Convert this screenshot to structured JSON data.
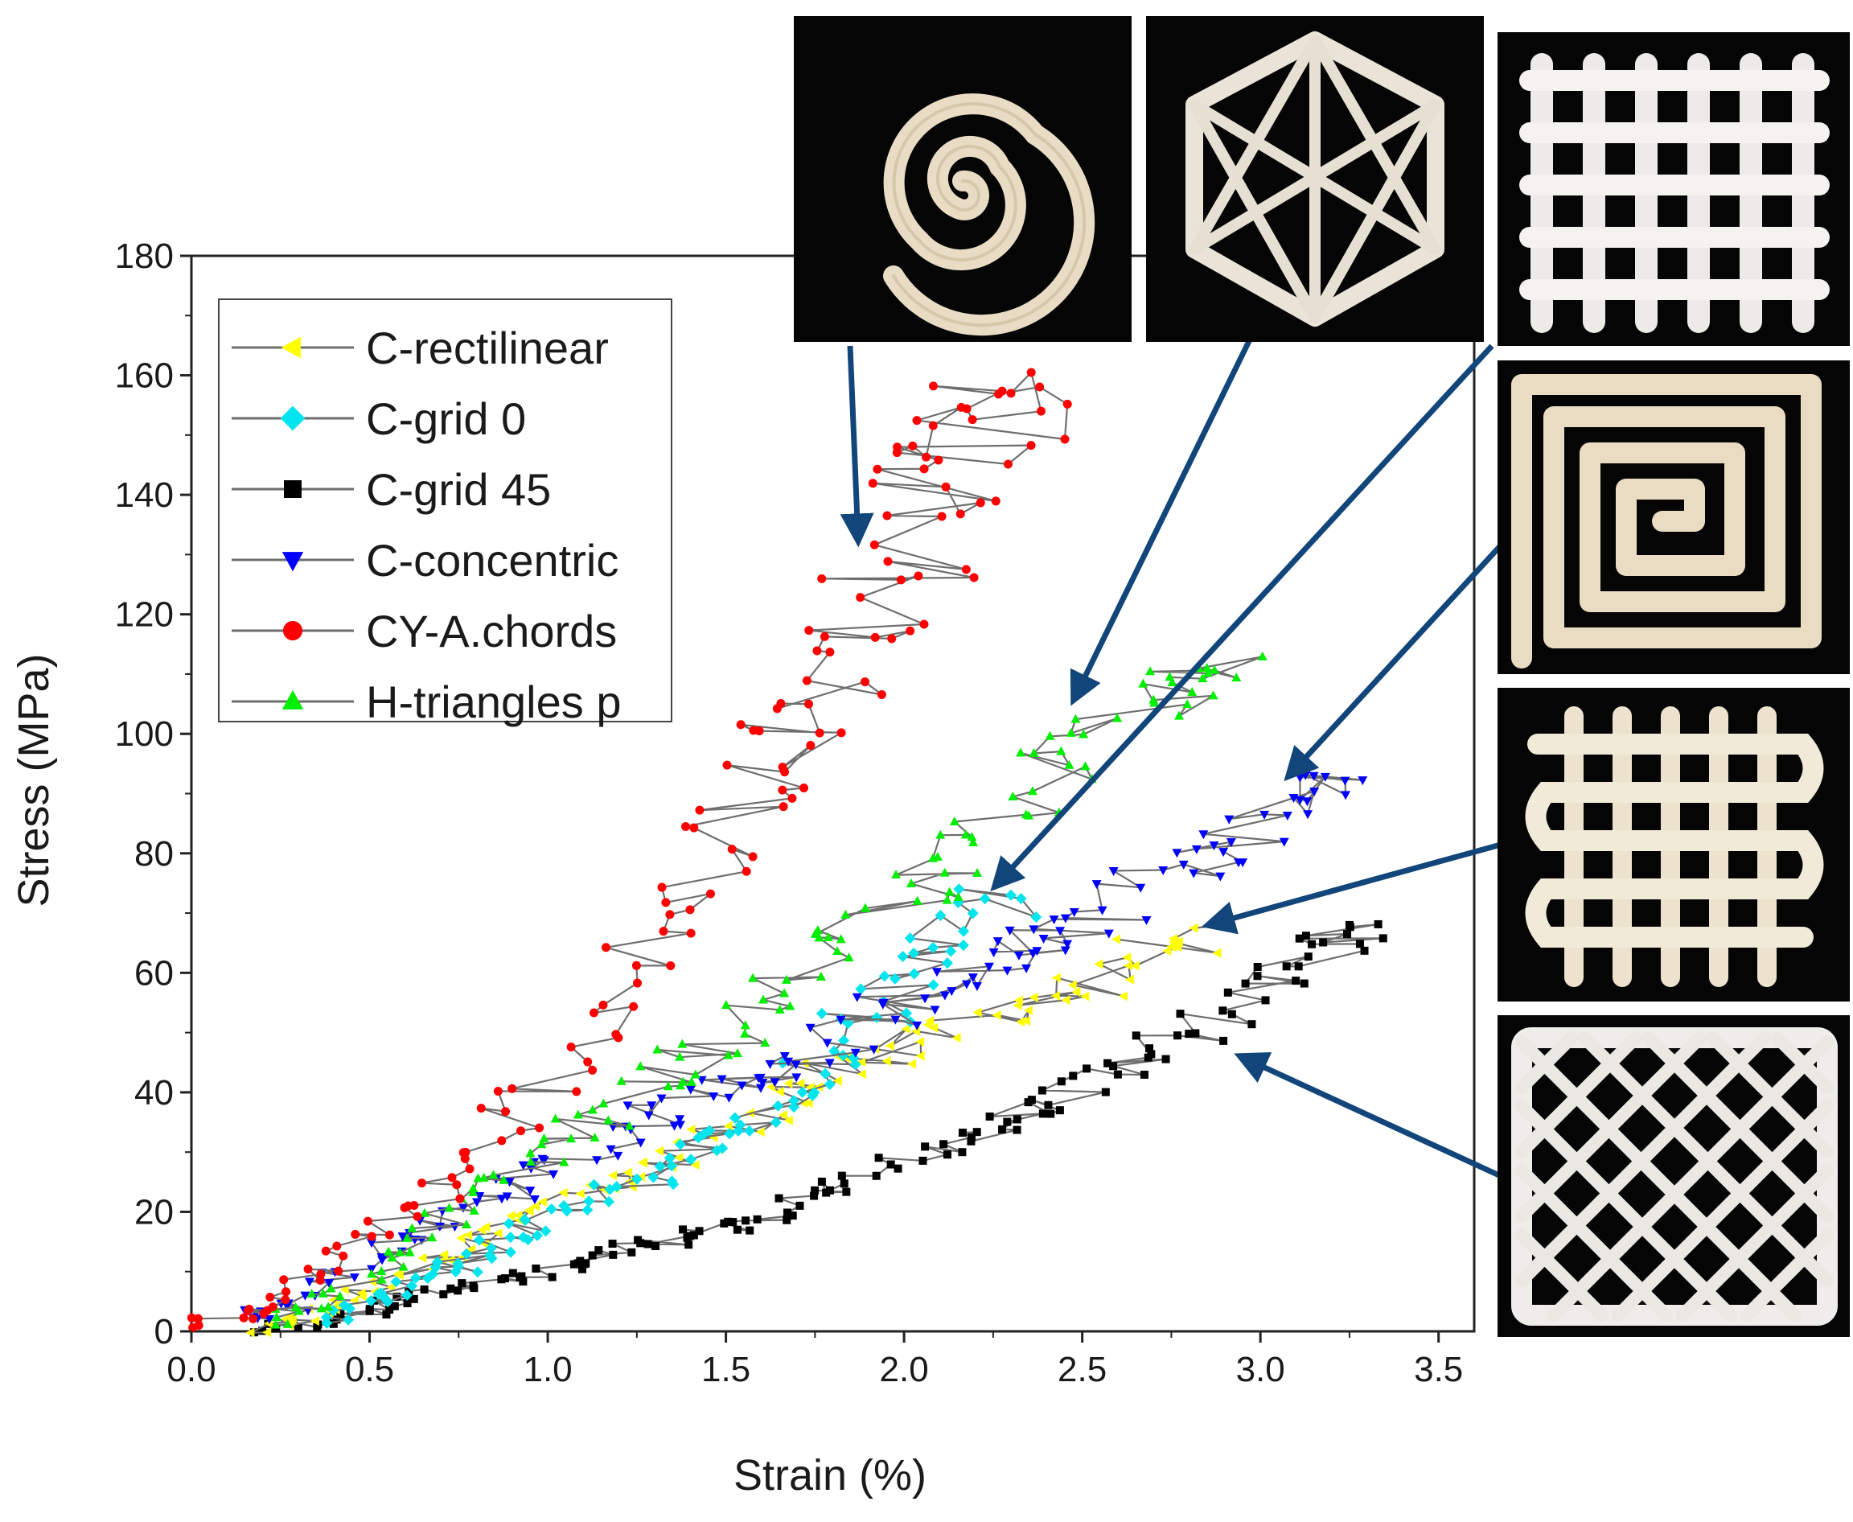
{
  "chart_data": {
    "type": "line",
    "xlabel": "Strain (%)",
    "ylabel": "Stress (MPa)",
    "xlim": [
      0,
      3.6
    ],
    "ylim": [
      0,
      180
    ],
    "x_ticks": [
      "0.0",
      "0.5",
      "1.0",
      "1.5",
      "2.0",
      "2.5",
      "3.0",
      "3.5"
    ],
    "y_ticks": [
      "0",
      "20",
      "40",
      "60",
      "80",
      "100",
      "120",
      "140",
      "160",
      "180"
    ],
    "legend_position": "top-left",
    "series": [
      {
        "name": "C-rectilinear",
        "color": "#ffff00",
        "marker": "triangle-left",
        "x": [
          0.2,
          0.35,
          0.5,
          0.7,
          0.9,
          1.1,
          1.3,
          1.5,
          1.7,
          1.9,
          2.1,
          2.3,
          2.5,
          2.7,
          2.9
        ],
        "y": [
          0,
          3,
          7,
          12,
          18,
          23,
          27,
          33,
          40,
          45,
          50,
          54,
          58,
          64,
          68
        ]
      },
      {
        "name": "C-grid 0",
        "color": "#00e5ee",
        "marker": "diamond",
        "x": [
          0.4,
          0.55,
          0.7,
          0.85,
          1.0,
          1.2,
          1.4,
          1.55,
          1.7,
          1.85,
          2.0,
          2.15,
          2.3
        ],
        "y": [
          2,
          6,
          10,
          14,
          19,
          24,
          29,
          34,
          41,
          50,
          59,
          67,
          73
        ]
      },
      {
        "name": "C-grid 45",
        "color": "#000000",
        "marker": "square",
        "x": [
          0.2,
          0.4,
          0.6,
          0.8,
          1.0,
          1.2,
          1.4,
          1.6,
          1.8,
          2.0,
          2.2,
          2.4,
          2.6,
          2.8,
          3.0,
          3.2,
          3.25
        ],
        "y": [
          0,
          2,
          5,
          8,
          10,
          13,
          16,
          19,
          23,
          28,
          33,
          38,
          44,
          50,
          57,
          64,
          68
        ]
      },
      {
        "name": "C-concentric",
        "color": "#0000ff",
        "marker": "triangle-down",
        "x": [
          0.15,
          0.3,
          0.5,
          0.7,
          0.9,
          1.1,
          1.3,
          1.5,
          1.7,
          1.9,
          2.1,
          2.3,
          2.5,
          2.7,
          2.9,
          3.1,
          3.15
        ],
        "y": [
          2,
          5,
          12,
          18,
          24,
          30,
          36,
          41,
          44,
          52,
          58,
          64,
          68,
          76,
          82,
          90,
          93
        ]
      },
      {
        "name": "CY-A.chords",
        "color": "#ff0000",
        "marker": "circle",
        "x": [
          0.0,
          0.2,
          0.4,
          0.6,
          0.8,
          1.0,
          1.2,
          1.4,
          1.6,
          1.7,
          1.8,
          1.95,
          2.05,
          2.15,
          2.25,
          2.3
        ],
        "y": [
          1,
          4,
          11,
          20,
          30,
          42,
          58,
          74,
          90,
          100,
          112,
          124,
          136,
          146,
          154,
          157
        ]
      },
      {
        "name": "H-triangles p",
        "color": "#00ee00",
        "marker": "triangle-up",
        "x": [
          0.2,
          0.4,
          0.6,
          0.8,
          1.0,
          1.2,
          1.4,
          1.6,
          1.8,
          2.0,
          2.2,
          2.4,
          2.6,
          2.8,
          2.85
        ],
        "y": [
          1,
          6,
          13,
          22,
          30,
          38,
          45,
          54,
          64,
          74,
          82,
          92,
          102,
          110,
          111
        ]
      }
    ]
  },
  "photos": [
    {
      "label": "spiral-print",
      "points_to": "CY-A.chords"
    },
    {
      "label": "triangle-print",
      "points_to": "H-triangles p"
    },
    {
      "label": "grid-0-print",
      "points_to": "C-grid 0"
    },
    {
      "label": "concentric-print",
      "points_to": "C-concentric"
    },
    {
      "label": "rectilinear-print",
      "points_to": "C-rectilinear"
    },
    {
      "label": "grid-45-print",
      "points_to": "C-grid 45"
    }
  ]
}
